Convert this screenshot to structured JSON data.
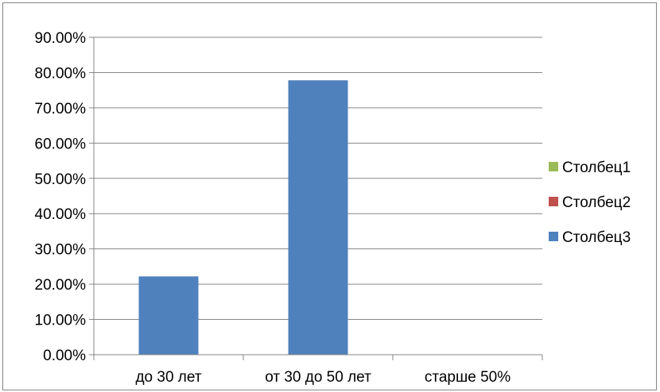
{
  "chart_data": {
    "type": "bar",
    "categories": [
      "до 30 лет",
      "от 30 до 50 лет",
      "старше 50%"
    ],
    "ylim": [
      0,
      0.9
    ],
    "ytick_step": 0.1,
    "ytick_labels": [
      "0.00%",
      "10.00%",
      "20.00%",
      "30.00%",
      "40.00%",
      "50.00%",
      "60.00%",
      "70.00%",
      "80.00%",
      "90.00%"
    ],
    "grid": true,
    "legend_position": "right",
    "series": [
      {
        "name": "Столбец1",
        "color": "#9BBB59",
        "values": [
          0,
          0,
          0
        ]
      },
      {
        "name": "Столбец2",
        "color": "#C0504D",
        "values": [
          0,
          0,
          0
        ]
      },
      {
        "name": "Столбец3",
        "color": "#4F81BD",
        "values": [
          0.222,
          0.778,
          0
        ]
      }
    ],
    "legend_order": [
      "Столбец1",
      "Столбец2",
      "Столбец3"
    ]
  }
}
